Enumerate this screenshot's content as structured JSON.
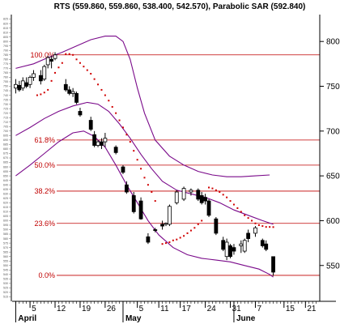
{
  "chart_data": {
    "type": "candlestick",
    "title": "RTS (559.860, 559.860, 538.400, 542.570), Parabolic SAR (592.840)",
    "x_tick_labels": [
      "5",
      "12",
      "19",
      "26",
      "5",
      "11",
      "17",
      "24",
      "31",
      "7",
      "15",
      "21"
    ],
    "x_tick_days": [
      5,
      12,
      19,
      26,
      35,
      41,
      47,
      54,
      61,
      68,
      76,
      82
    ],
    "month_labels": [
      {
        "label": "April",
        "day": 1
      },
      {
        "label": "May",
        "day": 31
      },
      {
        "label": "June",
        "day": 62
      }
    ],
    "y_axis_labels": [
      "800",
      "750",
      "700",
      "650",
      "600",
      "550"
    ],
    "y_axis_values": [
      800,
      750,
      700,
      650,
      600,
      550
    ],
    "ylim": [
      510,
      830
    ],
    "xlim": [
      0,
      86
    ],
    "fibonacci_levels": [
      {
        "label": "100.0%",
        "value": 785
      },
      {
        "label": "61.8%",
        "value": 690
      },
      {
        "label": "50.0%",
        "value": 662
      },
      {
        "label": "38.2%",
        "value": 633
      },
      {
        "label": "23.6%",
        "value": 597
      },
      {
        "label": "0.0%",
        "value": 539
      }
    ],
    "candles": [
      {
        "d": 1,
        "o": 748,
        "h": 758,
        "l": 742,
        "c": 752
      },
      {
        "d": 2,
        "o": 751,
        "h": 756,
        "l": 744,
        "c": 746
      },
      {
        "d": 3,
        "o": 748,
        "h": 760,
        "l": 745,
        "c": 756
      },
      {
        "d": 4,
        "o": 754,
        "h": 760,
        "l": 748,
        "c": 750
      },
      {
        "d": 5,
        "o": 752,
        "h": 762,
        "l": 748,
        "c": 760
      },
      {
        "d": 6,
        "o": 760,
        "h": 768,
        "l": 756,
        "c": 764
      },
      {
        "d": 8,
        "o": 762,
        "h": 768,
        "l": 752,
        "c": 756
      },
      {
        "d": 9,
        "o": 758,
        "h": 774,
        "l": 756,
        "c": 772
      },
      {
        "d": 10,
        "o": 774,
        "h": 784,
        "l": 770,
        "c": 782
      },
      {
        "d": 11,
        "o": 780,
        "h": 784,
        "l": 770,
        "c": 778
      },
      {
        "d": 12,
        "o": 781,
        "h": 788,
        "l": 779,
        "c": 785
      },
      {
        "d": 15,
        "o": 752,
        "h": 758,
        "l": 744,
        "c": 746
      },
      {
        "d": 16,
        "o": 746,
        "h": 750,
        "l": 740,
        "c": 742
      },
      {
        "d": 17,
        "o": 742,
        "h": 748,
        "l": 738,
        "c": 744
      },
      {
        "d": 18,
        "o": 742,
        "h": 744,
        "l": 730,
        "c": 732
      },
      {
        "d": 19,
        "o": 722,
        "h": 726,
        "l": 716,
        "c": 718
      },
      {
        "d": 22,
        "o": 712,
        "h": 716,
        "l": 700,
        "c": 702
      },
      {
        "d": 23,
        "o": 696,
        "h": 700,
        "l": 682,
        "c": 684
      },
      {
        "d": 24,
        "o": 684,
        "h": 690,
        "l": 682,
        "c": 688
      },
      {
        "d": 25,
        "o": 688,
        "h": 692,
        "l": 680,
        "c": 684
      },
      {
        "d": 26,
        "o": 688,
        "h": 698,
        "l": 682,
        "c": 692
      },
      {
        "d": 29,
        "o": 682,
        "h": 684,
        "l": 674,
        "c": 676
      },
      {
        "d": 31,
        "o": 660,
        "h": 662,
        "l": 652,
        "c": 654
      },
      {
        "d": 32,
        "o": 640,
        "h": 644,
        "l": 630,
        "c": 632
      },
      {
        "d": 34,
        "o": 628,
        "h": 632,
        "l": 608,
        "c": 610
      },
      {
        "d": 36,
        "o": 622,
        "h": 626,
        "l": 601,
        "c": 602
      },
      {
        "d": 38,
        "o": 582,
        "h": 586,
        "l": 574,
        "c": 576
      },
      {
        "d": 40,
        "o": 590,
        "h": 592,
        "l": 587,
        "c": 589
      },
      {
        "d": 42,
        "o": 596,
        "h": 600,
        "l": 590,
        "c": 594
      },
      {
        "d": 43,
        "o": 596,
        "h": 598,
        "l": 594,
        "c": 597
      },
      {
        "d": 44,
        "o": 596,
        "h": 618,
        "l": 594,
        "c": 616
      },
      {
        "d": 46,
        "o": 620,
        "h": 634,
        "l": 618,
        "c": 632
      },
      {
        "d": 48,
        "o": 624,
        "h": 638,
        "l": 622,
        "c": 636
      },
      {
        "d": 50,
        "o": 632,
        "h": 636,
        "l": 628,
        "c": 634
      },
      {
        "d": 52,
        "o": 634,
        "h": 636,
        "l": 622,
        "c": 624
      },
      {
        "d": 53,
        "o": 628,
        "h": 632,
        "l": 618,
        "c": 620
      },
      {
        "d": 54,
        "o": 626,
        "h": 630,
        "l": 618,
        "c": 622
      },
      {
        "d": 55,
        "o": 622,
        "h": 624,
        "l": 604,
        "c": 606
      },
      {
        "d": 57,
        "o": 602,
        "h": 604,
        "l": 584,
        "c": 586
      },
      {
        "d": 59,
        "o": 578,
        "h": 582,
        "l": 566,
        "c": 568
      },
      {
        "d": 60,
        "o": 560,
        "h": 580,
        "l": 556,
        "c": 576
      },
      {
        "d": 61,
        "o": 572,
        "h": 574,
        "l": 558,
        "c": 560
      },
      {
        "d": 62,
        "o": 570,
        "h": 574,
        "l": 562,
        "c": 566
      },
      {
        "d": 64,
        "o": 572,
        "h": 578,
        "l": 564,
        "c": 574
      },
      {
        "d": 65,
        "o": 566,
        "h": 580,
        "l": 564,
        "c": 578
      },
      {
        "d": 66,
        "o": 586,
        "h": 590,
        "l": 576,
        "c": 580
      },
      {
        "d": 68,
        "o": 586,
        "h": 594,
        "l": 582,
        "c": 592
      },
      {
        "d": 70,
        "o": 578,
        "h": 580,
        "l": 570,
        "c": 572
      },
      {
        "d": 71,
        "o": 574,
        "h": 578,
        "l": 566,
        "c": 568
      },
      {
        "d": 73,
        "o": 559.86,
        "h": 559.86,
        "l": 538.4,
        "c": 542.57
      }
    ],
    "sar": [
      {
        "d": 7,
        "v": 740
      },
      {
        "d": 8,
        "v": 741
      },
      {
        "d": 9,
        "v": 743
      },
      {
        "d": 10,
        "v": 746
      },
      {
        "d": 11,
        "v": 756
      },
      {
        "d": 12,
        "v": 765
      },
      {
        "d": 13,
        "v": 771
      },
      {
        "d": 14,
        "v": 776
      },
      {
        "d": 15,
        "v": 786
      },
      {
        "d": 16,
        "v": 786
      },
      {
        "d": 17,
        "v": 785
      },
      {
        "d": 18,
        "v": 780
      },
      {
        "d": 19,
        "v": 776
      },
      {
        "d": 20,
        "v": 772
      },
      {
        "d": 21,
        "v": 768
      },
      {
        "d": 22,
        "v": 764
      },
      {
        "d": 23,
        "v": 758
      },
      {
        "d": 24,
        "v": 752
      },
      {
        "d": 25,
        "v": 746
      },
      {
        "d": 26,
        "v": 740
      },
      {
        "d": 27,
        "v": 734
      },
      {
        "d": 28,
        "v": 727
      },
      {
        "d": 29,
        "v": 720
      },
      {
        "d": 30,
        "v": 712
      },
      {
        "d": 31,
        "v": 704
      },
      {
        "d": 32,
        "v": 696
      },
      {
        "d": 33,
        "v": 688
      },
      {
        "d": 34,
        "v": 678
      },
      {
        "d": 35,
        "v": 668
      },
      {
        "d": 36,
        "v": 658
      },
      {
        "d": 37,
        "v": 648
      },
      {
        "d": 38,
        "v": 640
      },
      {
        "d": 39,
        "v": 632
      },
      {
        "d": 40,
        "v": 622
      },
      {
        "d": 42,
        "v": 574
      },
      {
        "d": 43,
        "v": 575
      },
      {
        "d": 44,
        "v": 576
      },
      {
        "d": 45,
        "v": 578
      },
      {
        "d": 46,
        "v": 579
      },
      {
        "d": 47,
        "v": 581
      },
      {
        "d": 48,
        "v": 583
      },
      {
        "d": 49,
        "v": 586
      },
      {
        "d": 50,
        "v": 589
      },
      {
        "d": 51,
        "v": 592
      },
      {
        "d": 52,
        "v": 596
      },
      {
        "d": 53,
        "v": 600
      },
      {
        "d": 55,
        "v": 637
      },
      {
        "d": 56,
        "v": 636
      },
      {
        "d": 57,
        "v": 634
      },
      {
        "d": 58,
        "v": 632
      },
      {
        "d": 59,
        "v": 629
      },
      {
        "d": 60,
        "v": 626
      },
      {
        "d": 61,
        "v": 622
      },
      {
        "d": 62,
        "v": 618
      },
      {
        "d": 63,
        "v": 614
      },
      {
        "d": 64,
        "v": 610
      },
      {
        "d": 65,
        "v": 606
      },
      {
        "d": 66,
        "v": 603
      },
      {
        "d": 67,
        "v": 600
      },
      {
        "d": 68,
        "v": 597
      },
      {
        "d": 69,
        "v": 595
      },
      {
        "d": 70,
        "v": 594
      },
      {
        "d": 71,
        "v": 593
      },
      {
        "d": 72,
        "v": 593
      },
      {
        "d": 73,
        "v": 592.84
      }
    ],
    "envelope_upper": [
      {
        "d": 1,
        "v": 770
      },
      {
        "d": 6,
        "v": 775
      },
      {
        "d": 10,
        "v": 782
      },
      {
        "d": 14,
        "v": 788
      },
      {
        "d": 18,
        "v": 795
      },
      {
        "d": 22,
        "v": 802
      },
      {
        "d": 26,
        "v": 806
      },
      {
        "d": 29,
        "v": 806
      },
      {
        "d": 31,
        "v": 800
      },
      {
        "d": 33,
        "v": 780
      },
      {
        "d": 35,
        "v": 748
      },
      {
        "d": 37,
        "v": 720
      },
      {
        "d": 40,
        "v": 690
      },
      {
        "d": 44,
        "v": 672
      },
      {
        "d": 48,
        "v": 662
      },
      {
        "d": 52,
        "v": 655
      },
      {
        "d": 56,
        "v": 651
      },
      {
        "d": 60,
        "v": 649
      },
      {
        "d": 64,
        "v": 649
      },
      {
        "d": 68,
        "v": 650
      },
      {
        "d": 72,
        "v": 651
      }
    ],
    "envelope_middle": [
      {
        "d": 1,
        "v": 695
      },
      {
        "d": 5,
        "v": 704
      },
      {
        "d": 9,
        "v": 714
      },
      {
        "d": 13,
        "v": 722
      },
      {
        "d": 17,
        "v": 728
      },
      {
        "d": 21,
        "v": 732
      },
      {
        "d": 24,
        "v": 730
      },
      {
        "d": 27,
        "v": 722
      },
      {
        "d": 30,
        "v": 708
      },
      {
        "d": 33,
        "v": 692
      },
      {
        "d": 36,
        "v": 674
      },
      {
        "d": 39,
        "v": 658
      },
      {
        "d": 42,
        "v": 644
      },
      {
        "d": 46,
        "v": 634
      },
      {
        "d": 50,
        "v": 630
      },
      {
        "d": 54,
        "v": 626
      },
      {
        "d": 58,
        "v": 620
      },
      {
        "d": 62,
        "v": 612
      },
      {
        "d": 66,
        "v": 606
      },
      {
        "d": 70,
        "v": 600
      },
      {
        "d": 73,
        "v": 596
      }
    ],
    "envelope_lower": [
      {
        "d": 1,
        "v": 650
      },
      {
        "d": 5,
        "v": 662
      },
      {
        "d": 9,
        "v": 675
      },
      {
        "d": 13,
        "v": 688
      },
      {
        "d": 17,
        "v": 698
      },
      {
        "d": 20,
        "v": 700
      },
      {
        "d": 23,
        "v": 694
      },
      {
        "d": 26,
        "v": 682
      },
      {
        "d": 29,
        "v": 662
      },
      {
        "d": 32,
        "v": 640
      },
      {
        "d": 35,
        "v": 620
      },
      {
        "d": 38,
        "v": 600
      },
      {
        "d": 41,
        "v": 584
      },
      {
        "d": 45,
        "v": 570
      },
      {
        "d": 49,
        "v": 562
      },
      {
        "d": 53,
        "v": 558
      },
      {
        "d": 57,
        "v": 556
      },
      {
        "d": 61,
        "v": 554
      },
      {
        "d": 65,
        "v": 550
      },
      {
        "d": 69,
        "v": 546
      },
      {
        "d": 72,
        "v": 540
      },
      {
        "d": 73,
        "v": 537
      }
    ],
    "colors": {
      "background": "#ffffff",
      "fib_line": "#c00000",
      "fib_label": "#c00000",
      "envelope": "#7a0a8a",
      "sar": "#d00000",
      "candle_up_fill": "#ffffff",
      "candle_down_fill": "#000000",
      "candle_outline": "#000000",
      "axis": "#000000"
    },
    "grid": false
  }
}
